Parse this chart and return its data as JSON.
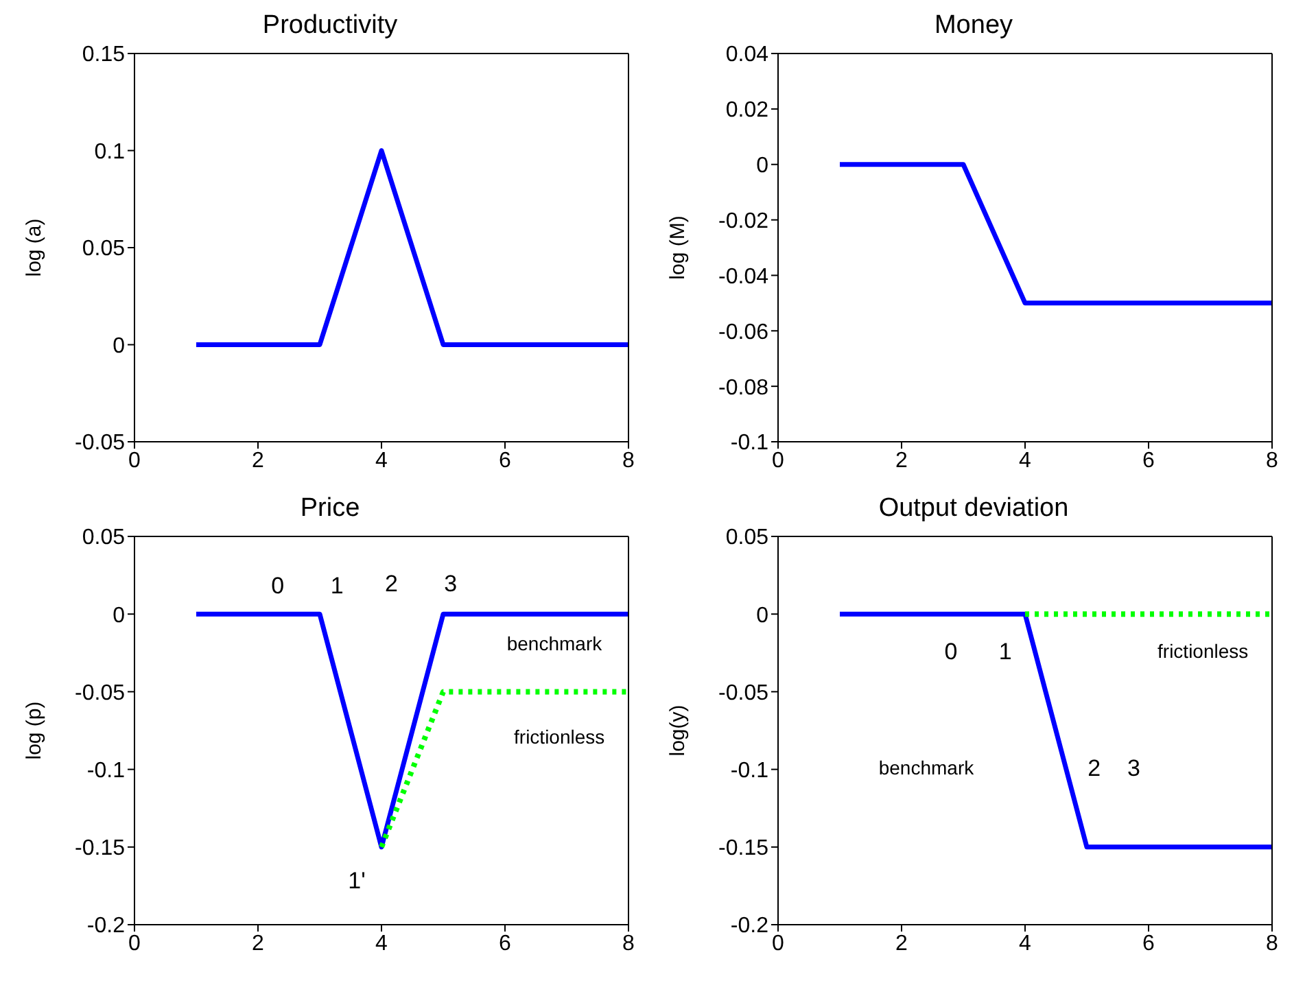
{
  "chart_data": [
    {
      "type": "line",
      "title": "Productivity",
      "ylabel": "log (a)",
      "xlim": [
        0,
        8
      ],
      "xticks": [
        0,
        2,
        4,
        6,
        8
      ],
      "ylim": [
        -0.05,
        0.15
      ],
      "yticks": [
        -0.05,
        0,
        0.05,
        0.1,
        0.15
      ],
      "grid": false,
      "legend": false,
      "marker": "none",
      "series": [
        {
          "color": "#0000ff",
          "line_style": "solid",
          "x": [
            1,
            3,
            4,
            5,
            8
          ],
          "values": [
            0,
            0,
            0.1,
            0,
            0
          ]
        }
      ]
    },
    {
      "type": "line",
      "title": "Money",
      "ylabel": "log (M)",
      "xlim": [
        0,
        8
      ],
      "xticks": [
        0,
        2,
        4,
        6,
        8
      ],
      "ylim": [
        -0.1,
        0.04
      ],
      "yticks": [
        -0.1,
        -0.08,
        -0.06,
        -0.04,
        -0.02,
        0,
        0.02,
        0.04
      ],
      "grid": false,
      "legend": false,
      "marker": "none",
      "series": [
        {
          "color": "#0000ff",
          "line_style": "solid",
          "x": [
            1,
            3,
            4,
            8
          ],
          "values": [
            0,
            0,
            -0.05,
            -0.05
          ]
        }
      ]
    },
    {
      "type": "line",
      "title": "Price",
      "ylabel": "log (p)",
      "xlim": [
        0,
        8
      ],
      "xticks": [
        0,
        2,
        4,
        6,
        8
      ],
      "ylim": [
        -0.2,
        0.05
      ],
      "yticks": [
        -0.2,
        -0.15,
        -0.1,
        -0.05,
        0,
        0.05
      ],
      "grid": false,
      "legend": false,
      "marker": "none",
      "series": [
        {
          "color": "#0000ff",
          "line_style": "solid",
          "x": [
            1,
            3,
            4,
            5,
            8
          ],
          "values": [
            0,
            0,
            -0.15,
            0,
            0
          ]
        },
        {
          "color": "#00ff00",
          "line_style": "dotted",
          "x": [
            4,
            5,
            8
          ],
          "values": [
            -0.15,
            -0.05,
            -0.05
          ]
        }
      ],
      "annotations": [
        "0",
        "1",
        "2",
        "3",
        "benchmark",
        "frictionless",
        "1'"
      ]
    },
    {
      "type": "line",
      "title": "Output deviation",
      "ylabel": "log(y)",
      "xlim": [
        0,
        8
      ],
      "xticks": [
        0,
        2,
        4,
        6,
        8
      ],
      "ylim": [
        -0.2,
        0.05
      ],
      "yticks": [
        -0.2,
        -0.15,
        -0.1,
        -0.05,
        0,
        0.05
      ],
      "grid": false,
      "legend": false,
      "marker": "none",
      "series": [
        {
          "color": "#0000ff",
          "line_style": "solid",
          "x": [
            1,
            4,
            5,
            8
          ],
          "values": [
            0,
            0,
            -0.15,
            -0.15
          ]
        },
        {
          "color": "#00ff00",
          "line_style": "dotted",
          "x": [
            4,
            8
          ],
          "values": [
            0,
            0
          ]
        }
      ],
      "annotations": [
        "0",
        "1",
        "frictionless",
        "benchmark",
        "2",
        "3"
      ]
    }
  ]
}
